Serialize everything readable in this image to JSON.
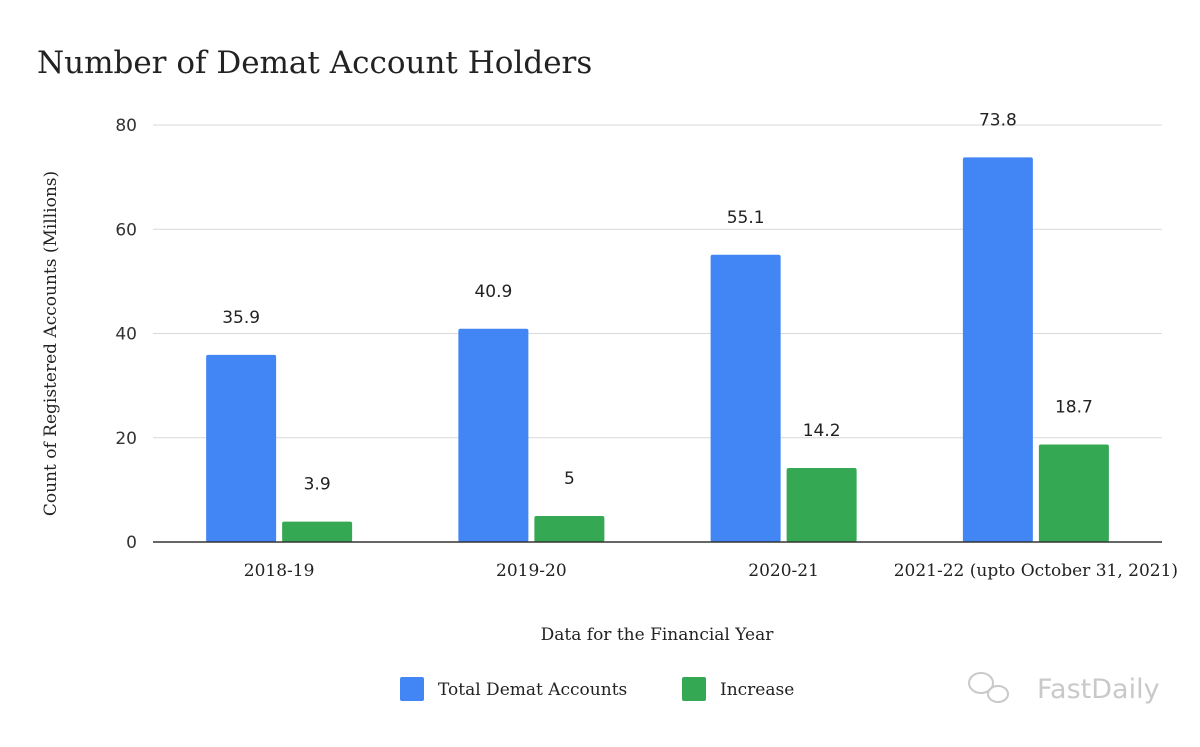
{
  "chart_data": {
    "type": "bar",
    "title": "Number of Demat Account Holders",
    "xlabel": "Data for the Financial Year",
    "ylabel": "Count of Registered Accounts (Millions)",
    "categories": [
      "2018-19",
      "2019-20",
      "2020-21",
      "2021-22 (upto October 31, 2021)"
    ],
    "series": [
      {
        "name": "Total Demat Accounts",
        "values": [
          35.9,
          40.9,
          55.1,
          73.8
        ],
        "labels": [
          "35.9",
          "40.9",
          "55.1",
          "73.8"
        ]
      },
      {
        "name": "Increase",
        "values": [
          3.9,
          5,
          14.2,
          18.7
        ],
        "labels": [
          "3.9",
          "5",
          "14.2",
          "18.7"
        ]
      }
    ],
    "ylim": [
      0,
      80
    ],
    "yticks": [
      "0",
      "20",
      "40",
      "60",
      "80"
    ],
    "grid": true,
    "legend_position": "bottom-center",
    "colors": {
      "series": [
        "#4285f4",
        "#34a853"
      ],
      "grid": "#d9d9d9",
      "axis": "#333333"
    }
  },
  "watermark": {
    "text": "FastDaily",
    "icon": "wechat-icon"
  }
}
